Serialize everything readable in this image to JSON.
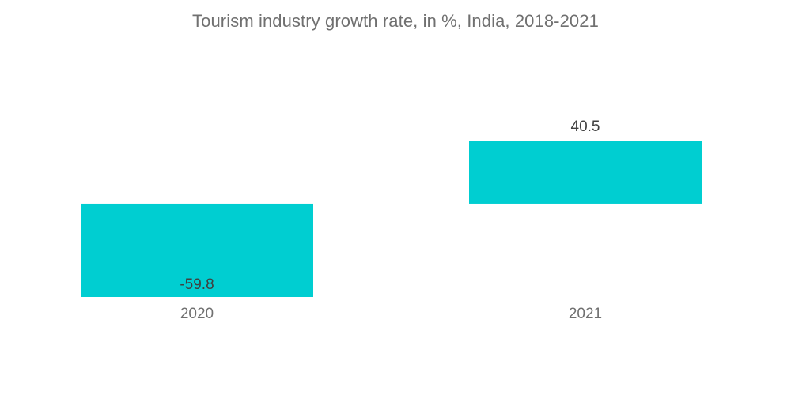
{
  "chart_data": {
    "type": "bar",
    "title": "Tourism industry growth rate, in %, India, 2018-2021",
    "categories": [
      "2020",
      "2021"
    ],
    "values": [
      -59.8,
      40.5
    ],
    "data_labels": [
      "-59.8",
      "40.5"
    ],
    "xlabel": "",
    "ylabel": "",
    "ylim": [
      -59.8,
      40.5
    ],
    "grid": false,
    "legend": "none",
    "bar_color": "#00CED1",
    "text_color": "#707070",
    "label_color": "#404040"
  }
}
